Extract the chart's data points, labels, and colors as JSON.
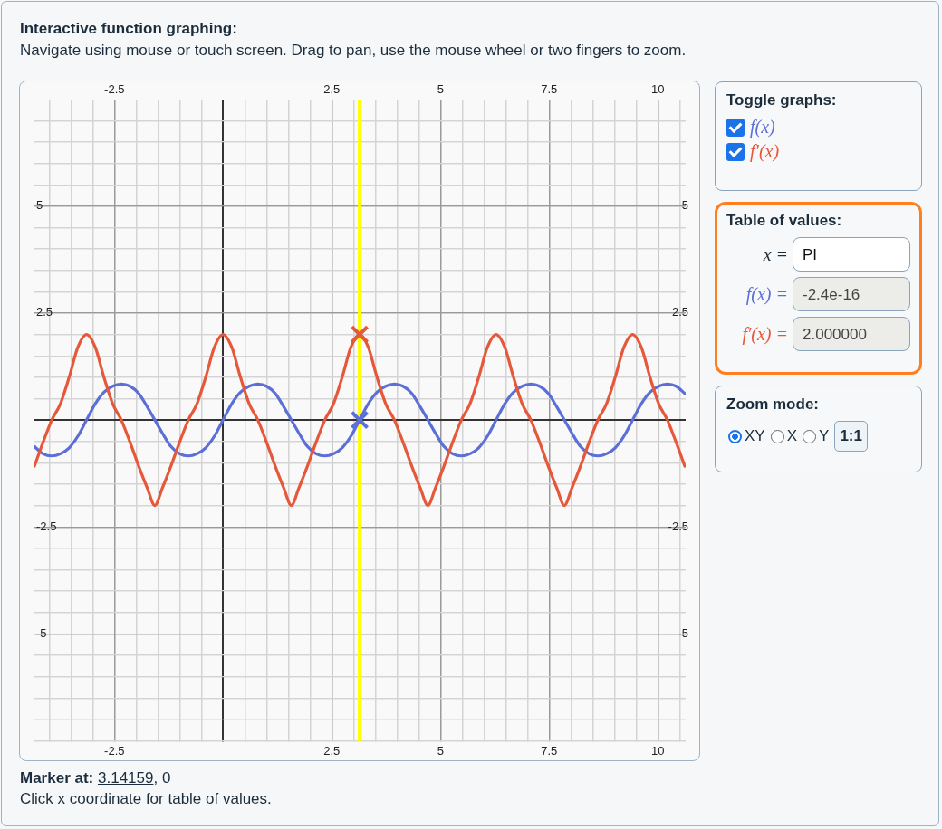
{
  "chart_data": {
    "type": "line",
    "title": "Interactive function graphing:",
    "subtitle": "Navigate using mouse or touch screen. Drag to pan, use the mouse wheel or two fingers to zoom.",
    "legend_title": "Toggle graphs:",
    "legend": "right",
    "grid": true,
    "marker": "none",
    "xlim": [
      -4.36,
      10.64
    ],
    "ylim": [
      -7.52,
      7.48
    ],
    "x2lim": [
      -4.36,
      10.64
    ],
    "y2lim": [
      -7.52,
      7.48
    ],
    "xticks": [
      {
        "value": -4,
        "label": null
      },
      {
        "value": -3.5,
        "label": null
      },
      {
        "value": -3,
        "label": null
      },
      -2.5,
      {
        "value": -2,
        "label": null
      },
      {
        "value": -1.5,
        "label": null
      },
      {
        "value": -1,
        "label": null
      },
      {
        "value": -0.5,
        "label": null
      },
      {
        "value": 0,
        "label": null
      },
      {
        "value": 0.5,
        "label": null
      },
      {
        "value": 1,
        "label": null
      },
      {
        "value": 1.5,
        "label": null
      },
      {
        "value": 2,
        "label": null
      },
      2.5,
      {
        "value": 3,
        "label": null
      },
      {
        "value": 3.5,
        "label": null
      },
      {
        "value": 4,
        "label": null
      },
      {
        "value": 4.5,
        "label": null
      },
      5,
      {
        "value": 5.5,
        "label": null
      },
      {
        "value": 6,
        "label": null
      },
      {
        "value": 6.5,
        "label": null
      },
      {
        "value": 7,
        "label": null
      },
      7.5,
      {
        "value": 8,
        "label": null
      },
      {
        "value": 8.5,
        "label": null
      },
      {
        "value": 9,
        "label": null
      },
      {
        "value": 9.5,
        "label": null
      },
      10,
      {
        "value": 10.5,
        "label": null
      }
    ],
    "x2ticks": [
      {
        "value": -4,
        "label": null
      },
      {
        "value": -3.5,
        "label": null
      },
      {
        "value": -3,
        "label": null
      },
      -2.5,
      {
        "value": -2,
        "label": null
      },
      {
        "value": -1.5,
        "label": null
      },
      {
        "value": -1,
        "label": null
      },
      {
        "value": -0.5,
        "label": null
      },
      {
        "value": 0,
        "label": null
      },
      {
        "value": 0.5,
        "label": null
      },
      {
        "value": 1,
        "label": null
      },
      {
        "value": 1.5,
        "label": null
      },
      {
        "value": 2,
        "label": null
      },
      2.5,
      {
        "value": 3,
        "label": null
      },
      {
        "value": 3.5,
        "label": null
      },
      {
        "value": 4,
        "label": null
      },
      {
        "value": 4.5,
        "label": null
      },
      5,
      {
        "value": 5.5,
        "label": null
      },
      {
        "value": 6,
        "label": null
      },
      {
        "value": 6.5,
        "label": null
      },
      {
        "value": 7,
        "label": null
      },
      7.5,
      {
        "value": 8,
        "label": null
      },
      {
        "value": 8.5,
        "label": null
      },
      {
        "value": 9,
        "label": null
      },
      {
        "value": 9.5,
        "label": null
      },
      10,
      {
        "value": 10.5,
        "label": null
      }
    ],
    "yticks": [
      {
        "value": -7.5,
        "label": null
      },
      {
        "value": -7,
        "label": null
      },
      {
        "value": -6.5,
        "label": null
      },
      {
        "value": -6,
        "label": null
      },
      {
        "value": -5.5,
        "label": null
      },
      -5,
      {
        "value": -4.5,
        "label": null
      },
      {
        "value": -4,
        "label": null
      },
      {
        "value": -3.5,
        "label": null
      },
      {
        "value": -3,
        "label": null
      },
      -2.5,
      {
        "value": -2,
        "label": null
      },
      {
        "value": -1.5,
        "label": null
      },
      {
        "value": -1,
        "label": null
      },
      {
        "value": -0.5,
        "label": null
      },
      {
        "value": 0,
        "label": null
      },
      {
        "value": 0.5,
        "label": null
      },
      {
        "value": 1,
        "label": null
      },
      {
        "value": 1.5,
        "label": null
      },
      {
        "value": 2,
        "label": null
      },
      2.5,
      {
        "value": 3,
        "label": null
      },
      {
        "value": 3.5,
        "label": null
      },
      {
        "value": 4,
        "label": null
      },
      {
        "value": 4.5,
        "label": null
      },
      5,
      {
        "value": 5.5,
        "label": null
      },
      {
        "value": 6,
        "label": null
      },
      {
        "value": 6.5,
        "label": null
      },
      {
        "value": 7,
        "label": null
      }
    ],
    "y2ticks": [
      {
        "value": -7.5,
        "label": null
      },
      {
        "value": -7,
        "label": null
      },
      {
        "value": -6.5,
        "label": null
      },
      {
        "value": -6,
        "label": null
      },
      {
        "value": -5.5,
        "label": null
      },
      -5,
      {
        "value": -4.5,
        "label": null
      },
      {
        "value": -4,
        "label": null
      },
      {
        "value": -3.5,
        "label": null
      },
      {
        "value": -3,
        "label": null
      },
      -2.5,
      {
        "value": -2,
        "label": null
      },
      {
        "value": -1.5,
        "label": null
      },
      {
        "value": -1,
        "label": null
      },
      {
        "value": -0.5,
        "label": null
      },
      {
        "value": 0,
        "label": null
      },
      {
        "value": 0.5,
        "label": null
      },
      {
        "value": 1,
        "label": null
      },
      {
        "value": 1.5,
        "label": null
      },
      {
        "value": 2,
        "label": null
      },
      2.5,
      {
        "value": 3,
        "label": null
      },
      {
        "value": 3.5,
        "label": null
      },
      {
        "value": 4,
        "label": null
      },
      {
        "value": 4.5,
        "label": null
      },
      5,
      {
        "value": 5.5,
        "label": null
      },
      {
        "value": 6,
        "label": null
      },
      {
        "value": 6.5,
        "label": null
      },
      {
        "value": 7,
        "label": null
      }
    ],
    "x": [
      -4.34,
      -4.14,
      -3.94,
      -3.74,
      -3.54,
      -3.34,
      -3.14,
      -2.94,
      -2.74,
      -2.54,
      -2.34,
      -2.14,
      -1.94,
      -1.74,
      -1.57,
      -1.4,
      -1.2,
      -1.0,
      -0.8,
      -0.6,
      -0.4,
      -0.2,
      0,
      0.2,
      0.4,
      0.6,
      0.8,
      1.0,
      1.2,
      1.4,
      1.57,
      1.74,
      1.94,
      2.14,
      2.34,
      2.54,
      2.74,
      2.94,
      3.14,
      3.34,
      3.54,
      3.74,
      3.94,
      4.14,
      4.34,
      4.54,
      4.71,
      4.88,
      5.08,
      5.28,
      5.48,
      5.68,
      5.88,
      6.08,
      6.28,
      6.48,
      6.68,
      6.88,
      7.08,
      7.28,
      7.48,
      7.68,
      7.85,
      8.02,
      8.22,
      8.42,
      8.62,
      8.82,
      9.02,
      9.22,
      9.42,
      9.62,
      9.82,
      10.02,
      10.22,
      10.42,
      10.62
    ],
    "ref_lines": [
      {
        "axis": "x",
        "value": 3.14159,
        "color": "#ffff00"
      }
    ],
    "series": [
      {
        "name": "f(x)",
        "color": "#5b6fd6",
        "values": [
          -0.62,
          -0.79,
          -0.84,
          -0.79,
          -0.65,
          -0.38,
          0,
          0.38,
          0.65,
          0.79,
          0.84,
          0.79,
          0.62,
          0.3,
          0,
          -0.3,
          -0.62,
          -0.79,
          -0.84,
          -0.79,
          -0.65,
          -0.38,
          0,
          0.38,
          0.65,
          0.79,
          0.84,
          0.79,
          0.62,
          0.3,
          0,
          -0.3,
          -0.62,
          -0.79,
          -0.84,
          -0.79,
          -0.65,
          -0.38,
          0,
          0.38,
          0.65,
          0.79,
          0.84,
          0.79,
          0.62,
          0.3,
          0,
          -0.3,
          -0.62,
          -0.79,
          -0.84,
          -0.79,
          -0.65,
          -0.38,
          0,
          0.38,
          0.65,
          0.79,
          0.84,
          0.79,
          0.62,
          0.3,
          0,
          -0.3,
          -0.62,
          -0.79,
          -0.84,
          -0.79,
          -0.65,
          -0.38,
          0,
          0.38,
          0.65,
          0.79,
          0.84,
          0.79,
          0.62
        ]
      },
      {
        "name": "f′(x)",
        "color": "#e5583a",
        "values": [
          -1.08,
          -0.52,
          0,
          0.38,
          1.0,
          1.7,
          2.0,
          1.7,
          1.0,
          0.38,
          0,
          -0.52,
          -1.08,
          -1.6,
          -2.0,
          -1.6,
          -1.08,
          -0.52,
          0,
          0.38,
          1.0,
          1.7,
          2.0,
          1.7,
          1.0,
          0.38,
          0,
          -0.52,
          -1.08,
          -1.6,
          -2.0,
          -1.6,
          -1.08,
          -0.52,
          0,
          0.38,
          1.0,
          1.7,
          2.0,
          1.7,
          1.0,
          0.38,
          0,
          -0.52,
          -1.08,
          -1.6,
          -2.0,
          -1.6,
          -1.08,
          -0.52,
          0,
          0.38,
          1.0,
          1.7,
          2.0,
          1.7,
          1.0,
          0.38,
          0,
          -0.52,
          -1.08,
          -1.6,
          -2.0,
          -1.6,
          -1.08,
          -0.52,
          0,
          0.38,
          1.0,
          1.7,
          2.0,
          1.7,
          1.0,
          0.38,
          0,
          -0.52,
          -1.08
        ]
      },
      {
        "type": "scatter",
        "marker": "cross",
        "color": "#e5583a",
        "x": [
          3.14159
        ],
        "values": [
          2
        ]
      },
      {
        "type": "scatter",
        "marker": "cross",
        "color": "#5b6fd6",
        "x": [
          3.14159
        ],
        "values": [
          0
        ]
      }
    ],
    "annotations": [
      "Table of values:",
      "x =",
      "PI",
      "f(x) =",
      "-2.4e-16",
      "f′(x) =",
      "2.000000",
      "Zoom mode:",
      "XY",
      "X",
      "Y",
      "1:1",
      "Marker at:",
      "3.14159",
      ", 0",
      "Click x coordinate for table of values."
    ]
  }
}
